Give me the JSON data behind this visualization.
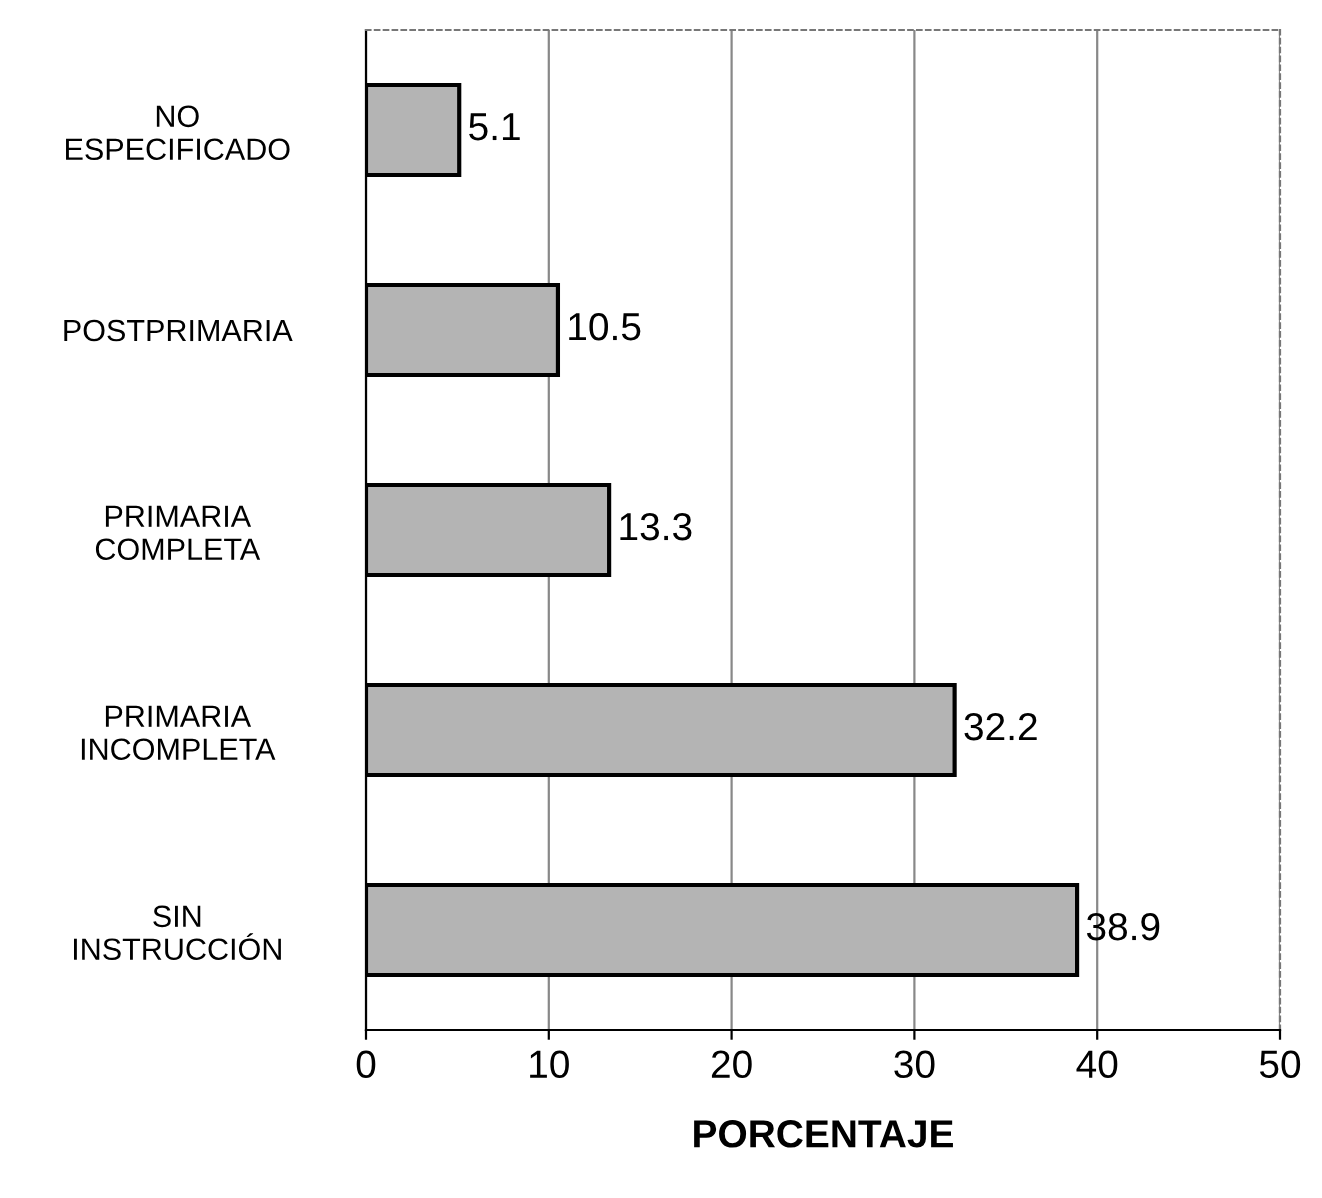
{
  "chart_data": {
    "type": "bar",
    "orientation": "horizontal",
    "xlabel": "PORCENTAJE",
    "categories": [
      "NO\nESPECIFICADO",
      "POSTPRIMARIA",
      "PRIMARIA\nCOMPLETA",
      "PRIMARIA\nINCOMPLETA",
      "SIN\nINSTRUCCIÓN"
    ],
    "values": [
      5.1,
      10.5,
      13.3,
      32.2,
      38.9
    ],
    "color": "#b4b4b4",
    "xlim": [
      0,
      50
    ],
    "xticks": [
      0,
      10,
      20,
      30,
      40,
      50
    ],
    "grid": "x",
    "data_labels": true
  }
}
